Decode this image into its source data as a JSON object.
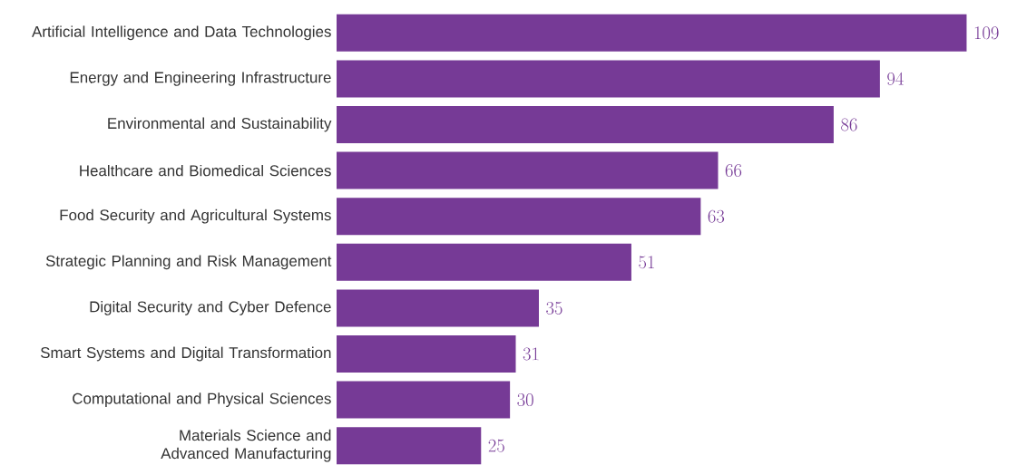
{
  "chart_data": {
    "type": "bar",
    "orientation": "horizontal",
    "categories": [
      "Artificial Intelligence and Data Technologies",
      "Energy and Engineering Infrastructure",
      "Environmental and Sustainability",
      "Healthcare and Biomedical Sciences",
      "Food Security and Agricultural Systems",
      "Strategic Planning and Risk Management",
      "Digital Security and Cyber Defence",
      "Smart Systems and Digital Transformation",
      "Computational and Physical Sciences",
      "Materials Science and Advanced Manufacturing"
    ],
    "values": [
      109,
      94,
      86,
      66,
      63,
      51,
      35,
      31,
      30,
      25
    ],
    "color": "#763a96",
    "data_labels": true
  }
}
